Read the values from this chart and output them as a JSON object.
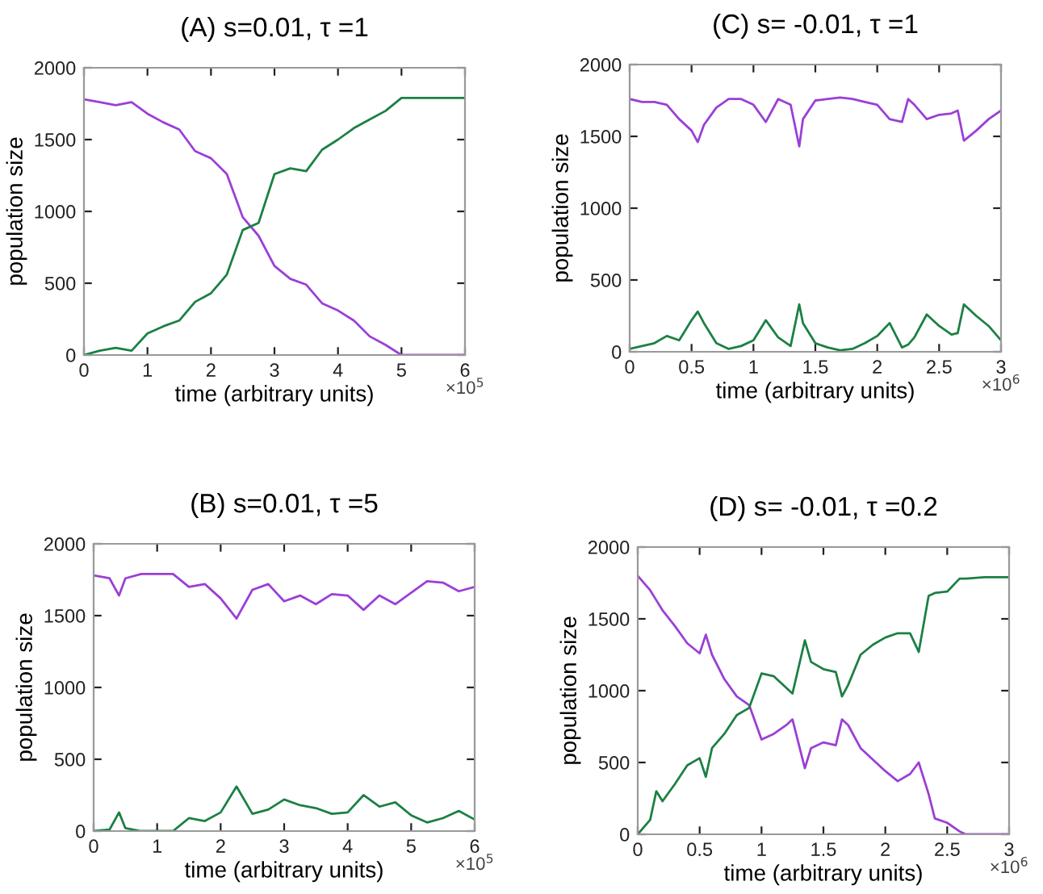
{
  "chart_data": [
    {
      "type": "line",
      "title": "(A) s=0.01, τ =1",
      "xlabel": "time (arbitrary units)",
      "ylabel": "population size",
      "annotations": [
        "×10$^{5}$"
      ],
      "x": [
        0,
        0.25,
        0.5,
        0.75,
        1,
        1.25,
        1.5,
        1.75,
        2,
        2.25,
        2.5,
        2.75,
        3,
        3.25,
        3.5,
        3.75,
        4,
        4.25,
        4.5,
        4.75,
        5,
        5.25,
        5.5,
        5.75,
        6
      ],
      "xlim": [
        0,
        6
      ],
      "xticks": [
        0,
        1,
        2,
        3,
        4,
        5,
        6
      ],
      "ylim": [
        0,
        2000
      ],
      "yticks": [
        0,
        500,
        1000,
        1500,
        2000
      ],
      "series": [
        {
          "color": "#9b3fd6",
          "values": [
            1780,
            1760,
            1740,
            1760,
            1680,
            1620,
            1570,
            1420,
            1370,
            1260,
            960,
            830,
            620,
            530,
            490,
            360,
            310,
            240,
            130,
            70,
            0,
            0,
            0,
            0,
            0
          ]
        },
        {
          "color": "#1b8044",
          "values": [
            0,
            30,
            50,
            30,
            150,
            200,
            240,
            370,
            430,
            560,
            870,
            920,
            1260,
            1300,
            1280,
            1430,
            1500,
            1580,
            1640,
            1700,
            1790,
            1790,
            1790,
            1790,
            1790
          ]
        }
      ]
    },
    {
      "type": "line",
      "title": "(C) s= -0.01, τ =1",
      "xlabel": "time (arbitrary units)",
      "ylabel": "population size",
      "annotations": [
        "×10$^{6}$"
      ],
      "x": [
        0,
        0.1,
        0.2,
        0.3,
        0.4,
        0.5,
        0.55,
        0.6,
        0.7,
        0.8,
        0.9,
        1.0,
        1.1,
        1.2,
        1.3,
        1.37,
        1.4,
        1.5,
        1.6,
        1.7,
        1.8,
        1.9,
        2.0,
        2.1,
        2.2,
        2.25,
        2.3,
        2.4,
        2.5,
        2.6,
        2.65,
        2.7,
        2.8,
        2.9,
        3.0
      ],
      "xlim": [
        0,
        3
      ],
      "xticks": [
        0,
        0.5,
        1,
        1.5,
        2,
        2.5,
        3
      ],
      "ylim": [
        0,
        2000
      ],
      "yticks": [
        0,
        500,
        1000,
        1500,
        2000
      ],
      "series": [
        {
          "color": "#9b3fd6",
          "values": [
            1760,
            1740,
            1740,
            1720,
            1620,
            1540,
            1460,
            1580,
            1700,
            1760,
            1760,
            1720,
            1600,
            1760,
            1720,
            1430,
            1620,
            1750,
            1760,
            1770,
            1760,
            1740,
            1720,
            1620,
            1600,
            1760,
            1720,
            1620,
            1650,
            1660,
            1680,
            1470,
            1540,
            1620,
            1680
          ]
        },
        {
          "color": "#1b8044",
          "values": [
            20,
            40,
            60,
            110,
            80,
            220,
            280,
            200,
            60,
            20,
            40,
            80,
            220,
            100,
            40,
            330,
            200,
            60,
            30,
            10,
            20,
            60,
            110,
            200,
            30,
            50,
            100,
            260,
            180,
            120,
            130,
            330,
            250,
            180,
            80
          ]
        }
      ]
    },
    {
      "type": "line",
      "title": "(B) s=0.01, τ =5",
      "xlabel": "time (arbitrary units)",
      "ylabel": "population size",
      "annotations": [
        "×10$^{5}$"
      ],
      "x": [
        0,
        0.25,
        0.4,
        0.5,
        0.75,
        1,
        1.25,
        1.5,
        1.75,
        2,
        2.25,
        2.5,
        2.75,
        3,
        3.25,
        3.5,
        3.75,
        4,
        4.25,
        4.5,
        4.75,
        5,
        5.25,
        5.5,
        5.75,
        6
      ],
      "xlim": [
        0,
        6
      ],
      "xticks": [
        0,
        1,
        2,
        3,
        4,
        5,
        6
      ],
      "ylim": [
        0,
        2000
      ],
      "yticks": [
        0,
        500,
        1000,
        1500,
        2000
      ],
      "series": [
        {
          "color": "#9b3fd6",
          "values": [
            1780,
            1760,
            1640,
            1760,
            1790,
            1790,
            1790,
            1700,
            1720,
            1620,
            1480,
            1680,
            1720,
            1600,
            1640,
            1580,
            1650,
            1640,
            1540,
            1640,
            1580,
            1660,
            1740,
            1730,
            1670,
            1700
          ]
        },
        {
          "color": "#1b8044",
          "values": [
            0,
            10,
            130,
            20,
            0,
            0,
            0,
            90,
            70,
            130,
            310,
            120,
            150,
            220,
            180,
            160,
            120,
            130,
            250,
            170,
            200,
            110,
            60,
            90,
            140,
            80
          ]
        }
      ]
    },
    {
      "type": "line",
      "title": "(D) s= -0.01, τ =0.2",
      "xlabel": "time (arbitrary units)",
      "ylabel": "population size",
      "annotations": [
        "×10$^{6}$"
      ],
      "x": [
        0,
        0.1,
        0.15,
        0.2,
        0.3,
        0.4,
        0.5,
        0.55,
        0.6,
        0.7,
        0.8,
        0.9,
        1.0,
        1.1,
        1.2,
        1.25,
        1.35,
        1.4,
        1.5,
        1.6,
        1.65,
        1.7,
        1.8,
        1.9,
        2.0,
        2.1,
        2.2,
        2.27,
        2.35,
        2.4,
        2.5,
        2.6,
        2.65,
        2.8,
        3.0
      ],
      "xlim": [
        0,
        3
      ],
      "xticks": [
        0,
        0.5,
        1,
        1.5,
        2,
        2.5,
        3
      ],
      "ylim": [
        0,
        2000
      ],
      "yticks": [
        0,
        500,
        1000,
        1500,
        2000
      ],
      "series": [
        {
          "color": "#9b3fd6",
          "values": [
            1800,
            1700,
            1630,
            1560,
            1450,
            1330,
            1260,
            1390,
            1250,
            1080,
            960,
            900,
            660,
            700,
            760,
            800,
            460,
            600,
            640,
            620,
            800,
            760,
            600,
            520,
            440,
            370,
            420,
            500,
            280,
            110,
            80,
            20,
            0,
            0,
            0
          ]
        },
        {
          "color": "#1b8044",
          "values": [
            0,
            100,
            300,
            230,
            350,
            480,
            530,
            400,
            600,
            700,
            830,
            880,
            1120,
            1100,
            1020,
            980,
            1350,
            1200,
            1150,
            1130,
            960,
            1040,
            1250,
            1320,
            1370,
            1400,
            1400,
            1270,
            1660,
            1680,
            1690,
            1780,
            1780,
            1790,
            1790
          ]
        }
      ]
    }
  ]
}
